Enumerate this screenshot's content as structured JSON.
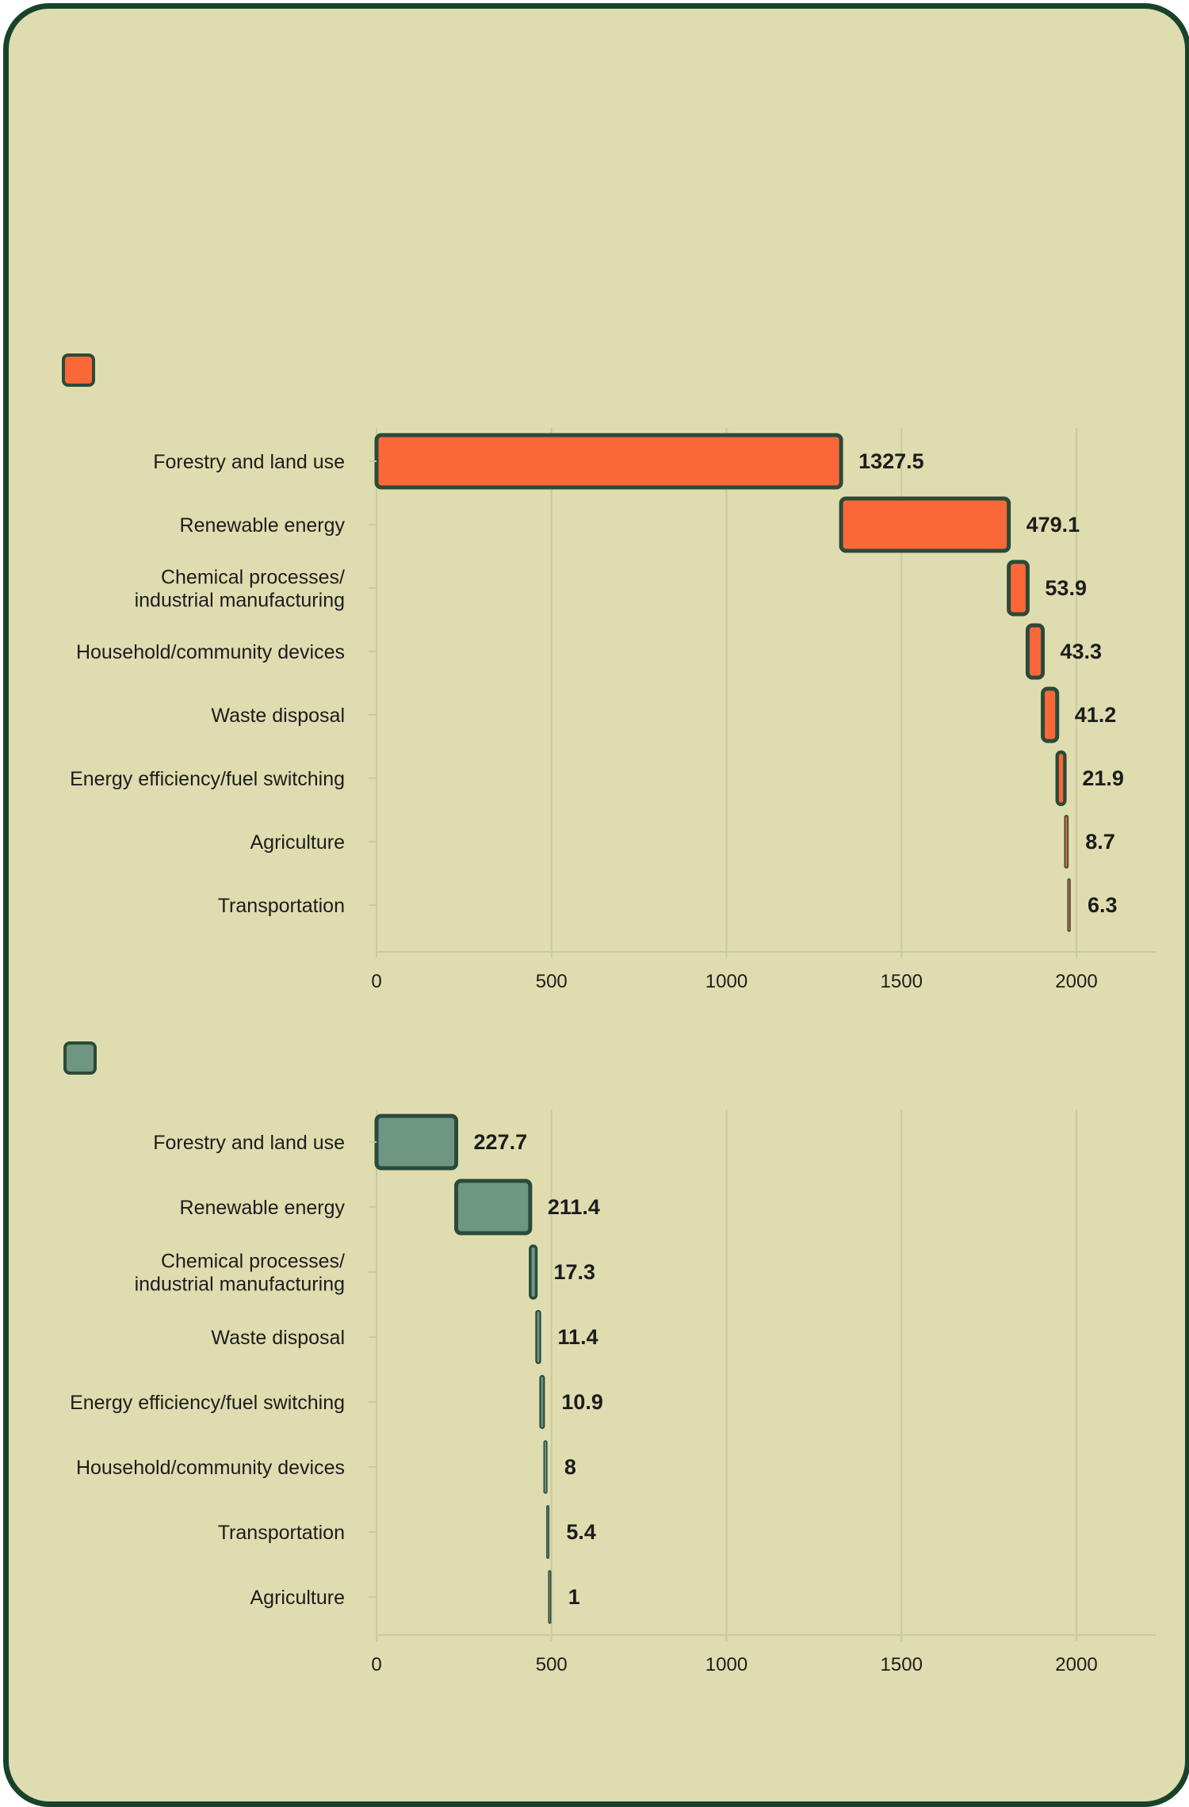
{
  "chart_data": [
    {
      "type": "bar",
      "variant": "waterfall",
      "orientation": "horizontal",
      "color": "#fa683a",
      "stroke": "#2b4a38",
      "categories": [
        "Forestry and land use",
        "Renewable energy",
        "Chemical processes/\nindustrial manufacturing",
        "Household/community devices",
        "Waste disposal",
        "Energy efficiency/fuel switching",
        "Agriculture",
        "Transportation"
      ],
      "values": [
        1327.5,
        479.1,
        53.9,
        43.3,
        41.2,
        21.9,
        8.7,
        6.3
      ],
      "value_labels": [
        "1327.5",
        "479.1",
        "53.9",
        "43.3",
        "41.2",
        "21.9",
        "8.7",
        "6.3"
      ],
      "xlim": [
        0,
        2000
      ],
      "ticks": [
        "0",
        "500",
        "1000",
        "1500",
        "2000"
      ],
      "grid": true,
      "legend": "top-left"
    },
    {
      "type": "bar",
      "variant": "waterfall",
      "orientation": "horizontal",
      "color": "#6f9682",
      "stroke": "#2b4a38",
      "categories": [
        "Forestry and land use",
        "Renewable energy",
        "Chemical processes/\nindustrial manufacturing",
        "Waste disposal",
        "Energy efficiency/fuel switching",
        "Household/community devices",
        "Transportation",
        "Agriculture"
      ],
      "values": [
        227.7,
        211.4,
        17.3,
        11.4,
        10.9,
        8,
        5.4,
        1
      ],
      "value_labels": [
        "227.7",
        "211.4",
        "17.3",
        "11.4",
        "10.9",
        "8",
        "5.4",
        "1"
      ],
      "xlim": [
        0,
        2000
      ],
      "ticks": [
        "0",
        "500",
        "1000",
        "1500",
        "2000"
      ],
      "grid": true,
      "legend": "top-left"
    }
  ],
  "colors": {
    "card_background": "#dfddb0",
    "card_border": "#17432b",
    "grid": "#c7cc9c"
  }
}
